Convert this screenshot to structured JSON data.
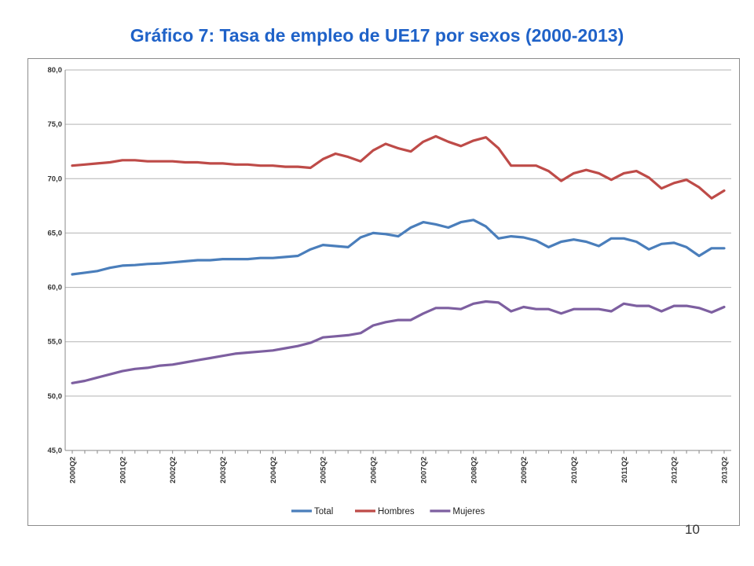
{
  "slide": {
    "title": "Gráfico 7: Tasa de empleo de UE17 por sexos (2000-2013)",
    "page_number": "10"
  },
  "colors": {
    "title": "#1f62c8",
    "total": "#4a7ebb",
    "hombres": "#be4b48",
    "mujeres": "#7d5fa0",
    "grid": "#b3b3b3"
  },
  "chart_data": {
    "type": "line",
    "title": "",
    "xlabel": "",
    "ylabel": "",
    "ylim": [
      45,
      80
    ],
    "yticks": [
      "45,0",
      "50,0",
      "55,0",
      "60,0",
      "65,0",
      "70,0",
      "75,0",
      "80,0"
    ],
    "grid": true,
    "legend_position": "bottom",
    "x": [
      "2000Q2",
      "2000Q3",
      "2000Q4",
      "2001Q1",
      "2001Q2",
      "2001Q3",
      "2001Q4",
      "2002Q1",
      "2002Q2",
      "2002Q3",
      "2002Q4",
      "2003Q1",
      "2003Q2",
      "2003Q3",
      "2003Q4",
      "2004Q1",
      "2004Q2",
      "2004Q3",
      "2004Q4",
      "2005Q1",
      "2005Q2",
      "2005Q3",
      "2005Q4",
      "2006Q1",
      "2006Q2",
      "2006Q3",
      "2006Q4",
      "2007Q1",
      "2007Q2",
      "2007Q3",
      "2007Q4",
      "2008Q1",
      "2008Q2",
      "2008Q3",
      "2008Q4",
      "2009Q1",
      "2009Q2",
      "2009Q3",
      "2009Q4",
      "2010Q1",
      "2010Q2",
      "2010Q3",
      "2010Q4",
      "2011Q1",
      "2011Q2",
      "2011Q3",
      "2011Q4",
      "2012Q1",
      "2012Q2",
      "2012Q3",
      "2012Q4",
      "2013Q1",
      "2013Q2"
    ],
    "x_tick_labels": [
      "2000Q2",
      "2001Q2",
      "2002Q2",
      "2003Q2",
      "2004Q2",
      "2005Q2",
      "2006Q2",
      "2007Q2",
      "2008Q2",
      "2009Q2",
      "2010Q2",
      "2011Q2",
      "2012Q2",
      "2013Q2"
    ],
    "series": [
      {
        "name": "Total",
        "color": "#4a7ebb",
        "values": [
          61.2,
          61.35,
          61.5,
          61.8,
          62.0,
          62.05,
          62.15,
          62.2,
          62.3,
          62.4,
          62.5,
          62.5,
          62.6,
          62.6,
          62.6,
          62.7,
          62.7,
          62.8,
          62.9,
          63.5,
          63.9,
          63.8,
          63.7,
          64.6,
          65.0,
          64.9,
          64.7,
          65.5,
          66.0,
          65.8,
          65.5,
          66.0,
          66.2,
          65.6,
          64.5,
          64.7,
          64.6,
          64.3,
          63.7,
          64.2,
          64.4,
          64.2,
          63.8,
          64.5,
          64.5,
          64.2,
          63.5,
          64.0,
          64.1,
          63.7,
          62.9,
          63.6,
          63.6
        ]
      },
      {
        "name": "Hombres",
        "color": "#be4b48",
        "values": [
          71.2,
          71.3,
          71.4,
          71.5,
          71.7,
          71.7,
          71.6,
          71.6,
          71.6,
          71.5,
          71.5,
          71.4,
          71.4,
          71.3,
          71.3,
          71.2,
          71.2,
          71.1,
          71.1,
          71.0,
          71.8,
          72.3,
          72.0,
          71.6,
          72.6,
          73.2,
          72.8,
          72.5,
          73.4,
          73.9,
          73.4,
          73.0,
          73.5,
          73.8,
          72.8,
          71.2,
          71.2,
          71.2,
          70.7,
          69.8,
          70.5,
          70.8,
          70.5,
          69.9,
          70.5,
          70.7,
          70.1,
          69.1,
          69.6,
          69.9,
          69.2,
          68.2,
          68.9
        ]
      },
      {
        "name": "Mujeres",
        "color": "#7d5fa0",
        "values": [
          51.2,
          51.4,
          51.7,
          52.0,
          52.3,
          52.5,
          52.6,
          52.8,
          52.9,
          53.1,
          53.3,
          53.5,
          53.7,
          53.9,
          54.0,
          54.1,
          54.2,
          54.4,
          54.6,
          54.9,
          55.4,
          55.5,
          55.6,
          55.8,
          56.5,
          56.8,
          57.0,
          57.0,
          57.6,
          58.1,
          58.1,
          58.0,
          58.5,
          58.7,
          58.6,
          57.8,
          58.2,
          58.0,
          58.0,
          57.6,
          58.0,
          58.0,
          58.0,
          57.8,
          58.5,
          58.3,
          58.3,
          57.8,
          58.3,
          58.3,
          58.1,
          57.7,
          58.2
        ]
      }
    ]
  }
}
